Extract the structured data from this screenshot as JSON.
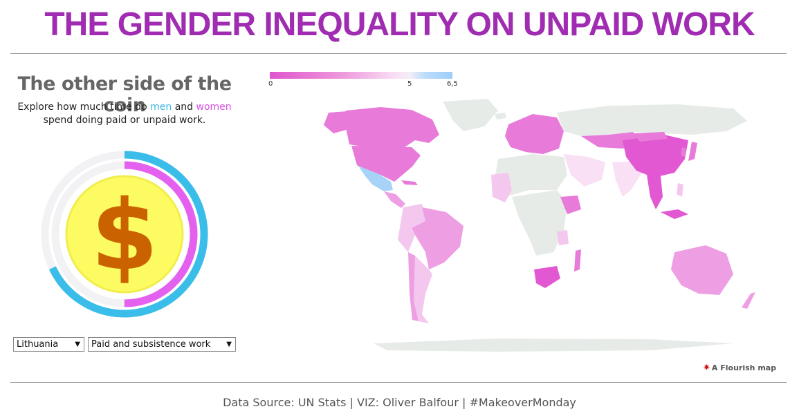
{
  "header": {
    "title": "THE GENDER INEQUALITY ON UNPAID WORK"
  },
  "panel": {
    "subtitle": "The other side of the coin",
    "desc_before": "Explore how much time do ",
    "men_word": "men",
    "and_word": " and ",
    "women_word": "women",
    "desc_line2": "spend doing paid or unpaid work.",
    "coin_symbol": "$"
  },
  "donut": {
    "women_fraction": 0.5,
    "men_fraction": 0.68,
    "colors": {
      "men": "#3bbde9",
      "women": "#e460ee",
      "track": "#f2f2f4",
      "coin": "#fdfb62",
      "coin_border": "#f1ee4c",
      "symbol": "#cb6200"
    }
  },
  "controls": {
    "country": {
      "selected": "Lithuania"
    },
    "work_type": {
      "selected": "Paid and subsistence work"
    },
    "arrow": "▼"
  },
  "legend": {
    "min": "0",
    "mid": "5",
    "max": "6,5",
    "colors": [
      "#e055cc",
      "#ee9add",
      "#f3eef8",
      "#9ccef9"
    ]
  },
  "map": {
    "colors": {
      "no_data": "#e6ebe8",
      "high": "#e87ad9",
      "mid": "#ee9ee2",
      "low": "#f4c8ee",
      "very_low": "#f9e0f5",
      "blue": "#a7d3f7",
      "strong": "#e257d2"
    }
  },
  "attribution": {
    "star": "✷",
    "label": "A Flourish map"
  },
  "footer": {
    "text": "Data Source: UN Stats | VIZ: Oliver Balfour | #MakeoverMonday"
  }
}
